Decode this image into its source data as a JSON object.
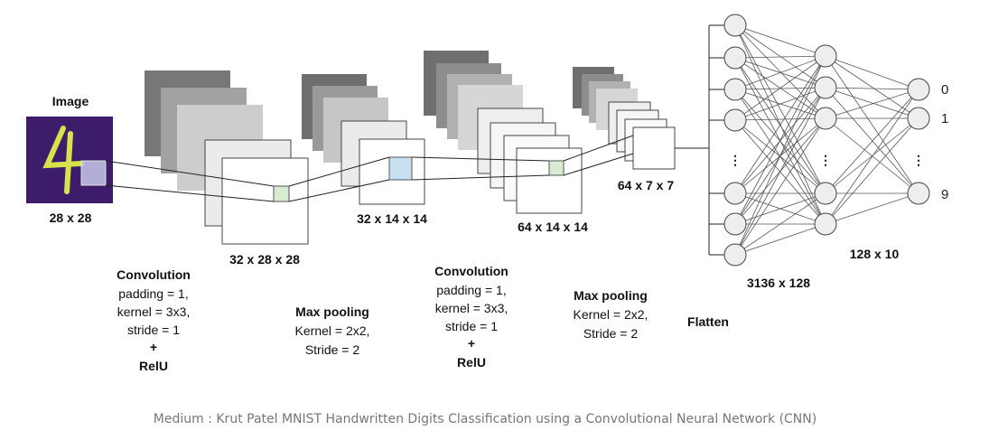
{
  "input": {
    "title": "Image",
    "dims": "28 x 28"
  },
  "stages": [
    {
      "dims": "32 x 28 x 28"
    },
    {
      "dims": "32 x 14 x 14"
    },
    {
      "dims": "64 x 14 x 14"
    },
    {
      "dims": "64 x 7 x 7"
    }
  ],
  "ops": {
    "conv1": [
      "Convolution",
      "padding = 1,",
      "kernel = 3x3,",
      "stride = 1",
      "+",
      "RelU"
    ],
    "pool1": [
      "Max pooling",
      "Kernel = 2x2,",
      "Stride = 2"
    ],
    "conv2": [
      "Convolution",
      "padding = 1,",
      "kernel = 3x3,",
      "stride = 1",
      "+",
      "RelU"
    ],
    "pool2": [
      "Max pooling",
      "Kernel = 2x2,",
      "Stride = 2"
    ],
    "flatten": "Flatten"
  },
  "network": {
    "fc1_dims": "3136 x 128",
    "fc2_dims": "128 x 10",
    "output_labels": [
      "0",
      "1",
      "9"
    ],
    "ellipsis": "⋮"
  },
  "caption": "Medium : Krut Patel MNIST Handwritten Digits Classification using a Convolutional Neural Network (CNN)",
  "colors": {
    "input_bg": "#3d1d6b",
    "digit": "#d6e34a",
    "kernel_green": "#d9ecd2",
    "kernel_blue": "#c9dff2",
    "node_fill": "#eeeeee"
  }
}
